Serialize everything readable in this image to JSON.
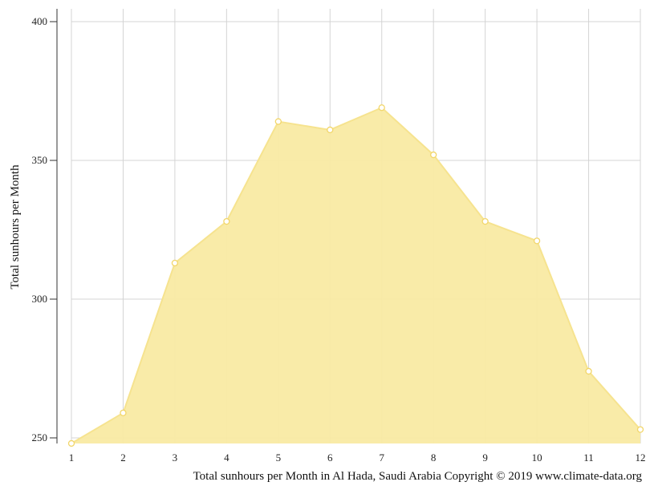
{
  "chart_data": {
    "type": "area",
    "x": [
      1,
      2,
      3,
      4,
      5,
      6,
      7,
      8,
      9,
      10,
      11,
      12
    ],
    "series": [
      {
        "values": [
          248,
          259,
          313,
          328,
          364,
          361,
          369,
          352,
          328,
          321,
          274,
          253
        ]
      }
    ],
    "ylabel": "Total sunhours per Month",
    "xlabel": "Total sunhours per Month in Al Hada, Saudi Arabia Copyright © 2019 www.climate-data.org",
    "ylim": [
      250,
      400
    ],
    "yticks": [
      250,
      300,
      350,
      400
    ],
    "xlim": [
      1,
      12
    ],
    "grid": true,
    "colors": {
      "fill": "#f9eaa3",
      "line": "#f6e38f",
      "marker_stroke": "#f2d66a",
      "marker_fill": "#ffffff"
    }
  }
}
